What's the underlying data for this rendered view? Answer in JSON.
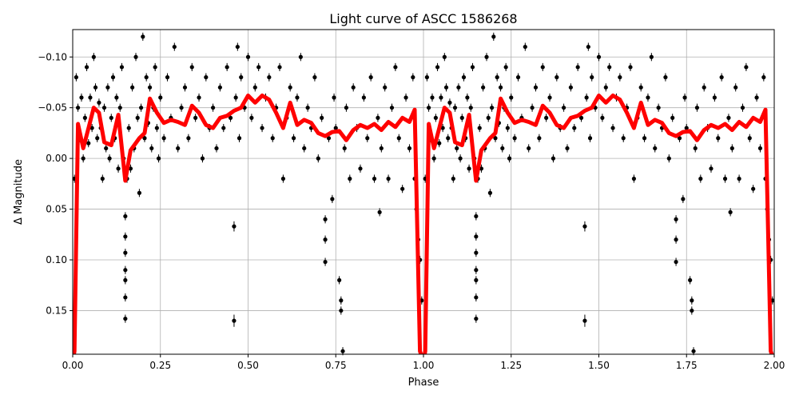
{
  "chart_data": {
    "type": "scatter",
    "title": "Light curve of ASCC 1586268",
    "xlabel": "Phase",
    "ylabel": "Δ Magnitude",
    "xlim": [
      0,
      2.0
    ],
    "ylim": [
      0.193,
      -0.127
    ],
    "y_inverted": true,
    "grid": true,
    "phase_repeated_twice": true,
    "xticks": [
      0,
      0.25,
      0.5,
      0.75,
      1.0,
      1.25,
      1.5,
      1.75,
      2.0
    ],
    "xtick_labels": [
      "0.00",
      "0.25",
      "0.50",
      "0.75",
      "1.00",
      "1.25",
      "1.50",
      "1.75",
      "2.00"
    ],
    "yticks": [
      -0.1,
      -0.05,
      0.0,
      0.05,
      0.1,
      0.15
    ],
    "ytick_labels": [
      "−0.10",
      "−0.05",
      "0.00",
      "0.05",
      "0.10",
      "0.15"
    ],
    "colors": {
      "points": "#000000",
      "model": "#ff0000",
      "grid": "#b0b0b0"
    },
    "points_note": "phase, delta magnitude, error",
    "points": [
      [
        0.005,
        0.02,
        0.004
      ],
      [
        0.01,
        -0.08,
        0.004
      ],
      [
        0.015,
        -0.05,
        0.004
      ],
      [
        0.02,
        -0.02,
        0.004
      ],
      [
        0.025,
        -0.06,
        0.004
      ],
      [
        0.03,
        0.0,
        0.004
      ],
      [
        0.035,
        -0.04,
        0.004
      ],
      [
        0.04,
        -0.09,
        0.004
      ],
      [
        0.045,
        -0.015,
        0.004
      ],
      [
        0.05,
        -0.06,
        0.004
      ],
      [
        0.055,
        -0.03,
        0.004
      ],
      [
        0.06,
        -0.1,
        0.004
      ],
      [
        0.065,
        -0.07,
        0.004
      ],
      [
        0.07,
        -0.02,
        0.004
      ],
      [
        0.075,
        -0.055,
        0.004
      ],
      [
        0.08,
        -0.03,
        0.004
      ],
      [
        0.085,
        0.02,
        0.004
      ],
      [
        0.09,
        -0.05,
        0.004
      ],
      [
        0.095,
        -0.01,
        0.004
      ],
      [
        0.1,
        -0.07,
        0.004
      ],
      [
        0.105,
        0.0,
        0.004
      ],
      [
        0.11,
        -0.04,
        0.004
      ],
      [
        0.115,
        -0.08,
        0.004
      ],
      [
        0.12,
        -0.02,
        0.004
      ],
      [
        0.125,
        -0.06,
        0.004
      ],
      [
        0.13,
        0.01,
        0.004
      ],
      [
        0.135,
        -0.05,
        0.004
      ],
      [
        0.14,
        -0.09,
        0.004
      ],
      [
        0.145,
        0.0,
        0.004
      ],
      [
        0.15,
        0.057,
        0.004
      ],
      [
        0.15,
        0.077,
        0.004
      ],
      [
        0.15,
        0.093,
        0.004
      ],
      [
        0.15,
        0.11,
        0.004
      ],
      [
        0.15,
        0.12,
        0.004
      ],
      [
        0.15,
        0.137,
        0.004
      ],
      [
        0.15,
        0.158,
        0.004
      ],
      [
        0.155,
        0.02,
        0.004
      ],
      [
        0.16,
        -0.03,
        0.004
      ],
      [
        0.165,
        0.01,
        0.004
      ],
      [
        0.17,
        -0.07,
        0.004
      ],
      [
        0.175,
        -0.01,
        0.004
      ],
      [
        0.18,
        -0.1,
        0.004
      ],
      [
        0.185,
        -0.04,
        0.004
      ],
      [
        0.19,
        0.034,
        0.004
      ],
      [
        0.195,
        -0.05,
        0.004
      ],
      [
        0.2,
        -0.12,
        0.004
      ],
      [
        0.205,
        -0.02,
        0.004
      ],
      [
        0.21,
        -0.08,
        0.004
      ],
      [
        0.215,
        -0.035,
        0.004
      ],
      [
        0.22,
        -0.07,
        0.004
      ],
      [
        0.225,
        -0.01,
        0.004
      ],
      [
        0.23,
        -0.05,
        0.004
      ],
      [
        0.235,
        -0.09,
        0.004
      ],
      [
        0.24,
        -0.03,
        0.004
      ],
      [
        0.245,
        0.0,
        0.004
      ],
      [
        0.25,
        -0.06,
        0.004
      ],
      [
        0.26,
        -0.02,
        0.004
      ],
      [
        0.27,
        -0.08,
        0.004
      ],
      [
        0.28,
        -0.04,
        0.004
      ],
      [
        0.29,
        -0.11,
        0.004
      ],
      [
        0.3,
        -0.01,
        0.004
      ],
      [
        0.31,
        -0.05,
        0.004
      ],
      [
        0.32,
        -0.07,
        0.004
      ],
      [
        0.33,
        -0.02,
        0.004
      ],
      [
        0.34,
        -0.09,
        0.004
      ],
      [
        0.35,
        -0.04,
        0.004
      ],
      [
        0.36,
        -0.06,
        0.004
      ],
      [
        0.37,
        0.0,
        0.004
      ],
      [
        0.38,
        -0.08,
        0.004
      ],
      [
        0.39,
        -0.03,
        0.004
      ],
      [
        0.4,
        -0.05,
        0.004
      ],
      [
        0.41,
        -0.01,
        0.004
      ],
      [
        0.42,
        -0.07,
        0.004
      ],
      [
        0.43,
        -0.03,
        0.004
      ],
      [
        0.44,
        -0.09,
        0.004
      ],
      [
        0.45,
        -0.04,
        0.004
      ],
      [
        0.46,
        0.067,
        0.005
      ],
      [
        0.46,
        0.16,
        0.006
      ],
      [
        0.465,
        -0.06,
        0.004
      ],
      [
        0.47,
        -0.11,
        0.004
      ],
      [
        0.475,
        -0.02,
        0.004
      ],
      [
        0.48,
        -0.08,
        0.004
      ],
      [
        0.49,
        -0.05,
        0.004
      ],
      [
        0.5,
        -0.1,
        0.004
      ],
      [
        0.51,
        -0.04,
        0.004
      ],
      [
        0.52,
        -0.07,
        0.004
      ],
      [
        0.53,
        -0.09,
        0.004
      ],
      [
        0.54,
        -0.03,
        0.004
      ],
      [
        0.55,
        -0.06,
        0.004
      ],
      [
        0.56,
        -0.08,
        0.004
      ],
      [
        0.57,
        -0.02,
        0.004
      ],
      [
        0.58,
        -0.05,
        0.004
      ],
      [
        0.59,
        -0.09,
        0.004
      ],
      [
        0.6,
        0.02,
        0.004
      ],
      [
        0.61,
        -0.04,
        0.004
      ],
      [
        0.62,
        -0.07,
        0.004
      ],
      [
        0.63,
        -0.02,
        0.004
      ],
      [
        0.64,
        -0.06,
        0.004
      ],
      [
        0.65,
        -0.1,
        0.004
      ],
      [
        0.66,
        -0.01,
        0.004
      ],
      [
        0.67,
        -0.05,
        0.004
      ],
      [
        0.68,
        -0.03,
        0.004
      ],
      [
        0.69,
        -0.08,
        0.004
      ],
      [
        0.7,
        0.0,
        0.004
      ],
      [
        0.71,
        -0.04,
        0.004
      ],
      [
        0.72,
        0.06,
        0.004
      ],
      [
        0.72,
        0.08,
        0.004
      ],
      [
        0.72,
        0.102,
        0.004
      ],
      [
        0.73,
        -0.02,
        0.004
      ],
      [
        0.74,
        0.04,
        0.004
      ],
      [
        0.745,
        -0.06,
        0.004
      ],
      [
        0.75,
        -0.03,
        0.004
      ],
      [
        0.76,
        0.12,
        0.004
      ],
      [
        0.765,
        0.14,
        0.004
      ],
      [
        0.765,
        0.15,
        0.004
      ],
      [
        0.77,
        0.19,
        0.004
      ],
      [
        0.775,
        -0.01,
        0.004
      ],
      [
        0.78,
        -0.05,
        0.004
      ],
      [
        0.79,
        0.02,
        0.004
      ],
      [
        0.8,
        -0.07,
        0.004
      ],
      [
        0.81,
        -0.03,
        0.004
      ],
      [
        0.82,
        0.01,
        0.004
      ],
      [
        0.83,
        -0.06,
        0.004
      ],
      [
        0.84,
        -0.02,
        0.004
      ],
      [
        0.85,
        -0.08,
        0.004
      ],
      [
        0.86,
        0.02,
        0.004
      ],
      [
        0.87,
        -0.04,
        0.004
      ],
      [
        0.875,
        0.053,
        0.004
      ],
      [
        0.88,
        -0.01,
        0.004
      ],
      [
        0.89,
        -0.07,
        0.004
      ],
      [
        0.9,
        0.02,
        0.004
      ],
      [
        0.91,
        -0.05,
        0.004
      ],
      [
        0.92,
        -0.09,
        0.004
      ],
      [
        0.93,
        -0.02,
        0.004
      ],
      [
        0.94,
        0.03,
        0.004
      ],
      [
        0.95,
        -0.06,
        0.004
      ],
      [
        0.96,
        -0.01,
        0.004
      ],
      [
        0.97,
        -0.08,
        0.004
      ],
      [
        0.975,
        0.02,
        0.004
      ],
      [
        0.98,
        0.05,
        0.004
      ],
      [
        0.985,
        0.08,
        0.004
      ],
      [
        0.99,
        0.1,
        0.004
      ],
      [
        0.995,
        0.14,
        0.004
      ]
    ],
    "model_curve": {
      "x": [
        0.0,
        0.005,
        0.015,
        0.03,
        0.045,
        0.06,
        0.075,
        0.09,
        0.11,
        0.13,
        0.15,
        0.165,
        0.19,
        0.205,
        0.22,
        0.24,
        0.26,
        0.28,
        0.3,
        0.32,
        0.34,
        0.36,
        0.38,
        0.4,
        0.42,
        0.44,
        0.46,
        0.48,
        0.5,
        0.52,
        0.54,
        0.56,
        0.58,
        0.6,
        0.62,
        0.64,
        0.66,
        0.68,
        0.7,
        0.72,
        0.74,
        0.76,
        0.78,
        0.8,
        0.82,
        0.84,
        0.86,
        0.88,
        0.9,
        0.92,
        0.94,
        0.96,
        0.975,
        0.99,
        1.0
      ],
      "y": [
        0.2,
        0.19,
        -0.034,
        -0.01,
        -0.03,
        -0.05,
        -0.045,
        -0.016,
        -0.013,
        -0.043,
        0.022,
        -0.008,
        -0.02,
        -0.025,
        -0.059,
        -0.045,
        -0.035,
        -0.038,
        -0.036,
        -0.033,
        -0.052,
        -0.045,
        -0.033,
        -0.03,
        -0.04,
        -0.042,
        -0.047,
        -0.05,
        -0.062,
        -0.055,
        -0.062,
        -0.058,
        -0.045,
        -0.03,
        -0.055,
        -0.033,
        -0.038,
        -0.035,
        -0.025,
        -0.022,
        -0.026,
        -0.027,
        -0.018,
        -0.028,
        -0.033,
        -0.03,
        -0.034,
        -0.028,
        -0.036,
        -0.031,
        -0.04,
        -0.036,
        -0.048,
        0.19,
        0.2
      ]
    }
  }
}
